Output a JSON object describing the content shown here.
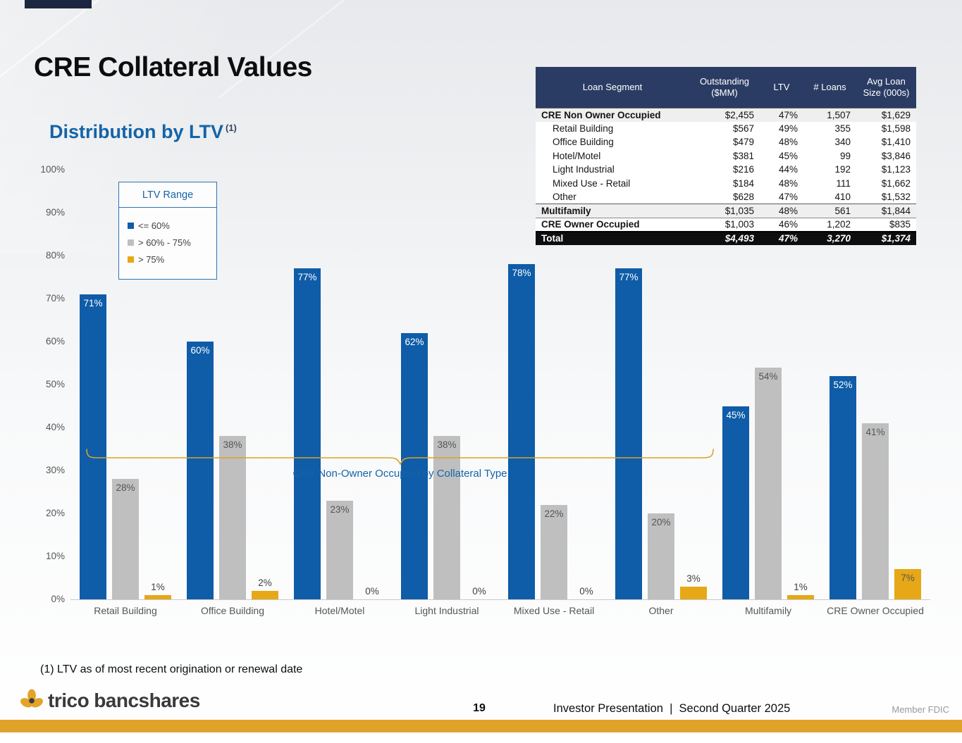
{
  "slide": {
    "title": "CRE Collateral Values",
    "subtitle": "Distribution by LTV",
    "subtitle_superscript": "(1)",
    "footnote": "(1) LTV as of most recent origination or renewal date"
  },
  "colors": {
    "bar_blue": "#0F5CA8",
    "bar_gray": "#BFBFBF",
    "bar_gold": "#E6A817",
    "table_header_navy": "#2B3C64",
    "accent_gold_strip": "#DFA32A",
    "subtitle_blue": "#1464A8"
  },
  "table": {
    "headers": [
      "Loan Segment",
      "Outstanding ($MM)",
      "LTV",
      "# Loans",
      "Avg Loan Size (000s)"
    ],
    "rows": [
      {
        "segment": "CRE Non Owner Occupied",
        "outstanding": "$2,455",
        "ltv": "47%",
        "loans": "1,507",
        "avg": "$1,629",
        "style": "section"
      },
      {
        "segment": "Retail Building",
        "outstanding": "$567",
        "ltv": "49%",
        "loans": "355",
        "avg": "$1,598",
        "style": "sub"
      },
      {
        "segment": "Office Building",
        "outstanding": "$479",
        "ltv": "48%",
        "loans": "340",
        "avg": "$1,410",
        "style": "sub"
      },
      {
        "segment": "Hotel/Motel",
        "outstanding": "$381",
        "ltv": "45%",
        "loans": "99",
        "avg": "$3,846",
        "style": "sub"
      },
      {
        "segment": "Light Industrial",
        "outstanding": "$216",
        "ltv": "44%",
        "loans": "192",
        "avg": "$1,123",
        "style": "sub"
      },
      {
        "segment": "Mixed Use - Retail",
        "outstanding": "$184",
        "ltv": "48%",
        "loans": "111",
        "avg": "$1,662",
        "style": "sub"
      },
      {
        "segment": "Other",
        "outstanding": "$628",
        "ltv": "47%",
        "loans": "410",
        "avg": "$1,532",
        "style": "sub"
      },
      {
        "segment": "Multifamily",
        "outstanding": "$1,035",
        "ltv": "48%",
        "loans": "561",
        "avg": "$1,844",
        "style": "section"
      },
      {
        "segment": "CRE Owner Occupied",
        "outstanding": "$1,003",
        "ltv": "46%",
        "loans": "1,202",
        "avg": "$835",
        "style": "section-plain"
      },
      {
        "segment": "Total",
        "outstanding": "$4,493",
        "ltv": "47%",
        "loans": "3,270",
        "avg": "$1,374",
        "style": "total"
      }
    ]
  },
  "legend": {
    "title": "LTV Range",
    "items": [
      {
        "label": "<= 60%",
        "color": "#0F5CA8"
      },
      {
        "label": "> 60% - 75%",
        "color": "#BFBFBF"
      },
      {
        "label": "> 75%",
        "color": "#E6A817"
      }
    ]
  },
  "chart_data": {
    "type": "bar",
    "title": "Distribution by LTV",
    "categories": [
      "Retail Building",
      "Office Building",
      "Hotel/Motel",
      "Light Industrial",
      "Mixed Use - Retail",
      "Other",
      "Multifamily",
      "CRE Owner Occupied"
    ],
    "series": [
      {
        "name": "<= 60%",
        "key": "le-60",
        "color": "#0F5CA8",
        "values": [
          71,
          60,
          77,
          62,
          78,
          77,
          45,
          52
        ]
      },
      {
        "name": "> 60% - 75%",
        "key": "60-75",
        "color": "#BFBFBF",
        "values": [
          28,
          38,
          23,
          38,
          22,
          20,
          54,
          41
        ]
      },
      {
        "name": "> 75%",
        "key": "gt-75",
        "color": "#E6A817",
        "values": [
          1,
          2,
          0,
          0,
          0,
          3,
          1,
          7
        ]
      }
    ],
    "xlabel": "",
    "ylabel": "",
    "ylim": [
      0,
      100
    ],
    "yticks": [
      "100%",
      "90%",
      "80%",
      "70%",
      "60%",
      "50%",
      "40%",
      "30%",
      "20%",
      "10%",
      "0%"
    ],
    "grid": false,
    "legend_position": "upper-left",
    "value_label_format": "percent",
    "group_label": "CRE Non-Owner Occupied by Collateral Type",
    "group_label_span": [
      "Retail Building",
      "Other"
    ]
  },
  "footer": {
    "logo_text_1": "trico",
    "logo_text_2": "bancshares",
    "page_number": "19",
    "caption": "Investor Presentation  |  Second Quarter 2025",
    "member": "Member FDIC"
  }
}
